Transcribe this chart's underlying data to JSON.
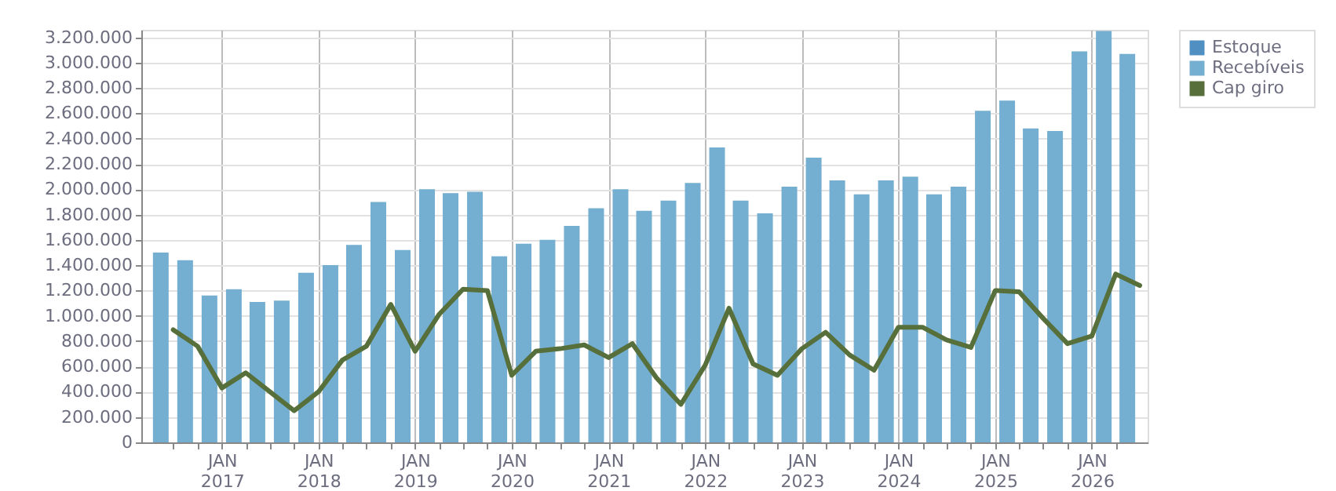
{
  "chart_data": {
    "type": "bar",
    "series": [
      {
        "name": "Estoque",
        "color": "#4f8fc2",
        "values": [
          null,
          null,
          null,
          null,
          null,
          null,
          null,
          null,
          null,
          null,
          null,
          null,
          null,
          null,
          null,
          null,
          null,
          null,
          null,
          null,
          null,
          null,
          null,
          null,
          null,
          null,
          null,
          null,
          null,
          null,
          null,
          null,
          null,
          null,
          null,
          null,
          null,
          null,
          null,
          null,
          null
        ]
      },
      {
        "name": "Recebíveis",
        "color": "#74aed1",
        "x": [
          "2016-05-15",
          "2016-08-15",
          "2016-11-15",
          "2017-02-15",
          "2017-05-15",
          "2017-08-15",
          "2017-11-15",
          "2018-02-15",
          "2018-05-15",
          "2018-08-15",
          "2018-11-15",
          "2019-02-15",
          "2019-05-15",
          "2019-08-15",
          "2019-11-15",
          "2020-02-15",
          "2020-05-15",
          "2020-08-15",
          "2020-11-15",
          "2021-02-15",
          "2021-05-15",
          "2021-08-15",
          "2021-11-15",
          "2022-02-15",
          "2022-05-15",
          "2022-08-15",
          "2022-11-15",
          "2023-02-15",
          "2023-05-15",
          "2023-08-15",
          "2023-11-15",
          "2024-02-15",
          "2024-05-15",
          "2024-08-15",
          "2024-11-15",
          "2025-02-15",
          "2025-05-15",
          "2025-08-15",
          "2025-11-15",
          "2026-02-15",
          "2026-05-15"
        ],
        "values": [
          1500000,
          1440000,
          1160000,
          1210000,
          1110000,
          1120000,
          1340000,
          1400000,
          1560000,
          1900000,
          1520000,
          2000000,
          1970000,
          1980000,
          1470000,
          1570000,
          1600000,
          1710000,
          1850000,
          2000000,
          1830000,
          1910000,
          2050000,
          2330000,
          1910000,
          1810000,
          2020000,
          2250000,
          2070000,
          1960000,
          2070000,
          2100000,
          1960000,
          2020000,
          2620000,
          2700000,
          2480000,
          2460000,
          3090000,
          3250000,
          3070000
        ]
      },
      {
        "name": "Cap giro",
        "type": "line",
        "color": "#566f3b",
        "x": [
          "2016-07-01",
          "2016-10-01",
          "2017-01-01",
          "2017-04-01",
          "2017-07-01",
          "2017-10-01",
          "2018-01-01",
          "2018-04-01",
          "2018-07-01",
          "2018-10-01",
          "2019-01-01",
          "2019-04-01",
          "2019-07-01",
          "2019-10-01",
          "2020-01-01",
          "2020-04-01",
          "2020-07-01",
          "2020-10-01",
          "2021-01-01",
          "2021-04-01",
          "2021-07-01",
          "2021-10-01",
          "2022-01-01",
          "2022-04-01",
          "2022-07-01",
          "2022-10-01",
          "2023-01-01",
          "2023-04-01",
          "2023-07-01",
          "2023-10-01",
          "2024-01-01",
          "2024-04-01",
          "2024-07-01",
          "2024-10-01",
          "2025-01-01",
          "2025-04-01",
          "2025-07-01",
          "2025-10-01",
          "2026-01-01",
          "2026-04-01",
          "2026-07-01"
        ],
        "values": [
          890000,
          760000,
          430000,
          550000,
          400000,
          250000,
          400000,
          650000,
          760000,
          1090000,
          720000,
          1010000,
          1210000,
          1200000,
          530000,
          720000,
          740000,
          770000,
          670000,
          780000,
          510000,
          300000,
          610000,
          1060000,
          620000,
          530000,
          740000,
          870000,
          690000,
          570000,
          910000,
          910000,
          810000,
          750000,
          1200000,
          1190000,
          980000,
          780000,
          840000,
          1330000,
          1240000
        ]
      }
    ],
    "xlim": [
      "2016-04-01",
      "2026-07-01"
    ],
    "xticks": [
      {
        "value": "2016-07-01",
        "label": null
      },
      {
        "value": "2016-10-01",
        "label": null
      },
      {
        "value": "2017-01-01",
        "label": "JAN\n2017"
      },
      {
        "value": "2017-04-01",
        "label": null
      },
      {
        "value": "2017-07-01",
        "label": null
      },
      {
        "value": "2017-10-01",
        "label": null
      },
      {
        "value": "2018-01-01",
        "label": "JAN\n2018"
      },
      {
        "value": "2018-04-01",
        "label": null
      },
      {
        "value": "2018-07-01",
        "label": null
      },
      {
        "value": "2018-10-01",
        "label": null
      },
      {
        "value": "2019-01-01",
        "label": "JAN\n2019"
      },
      {
        "value": "2019-04-01",
        "label": null
      },
      {
        "value": "2019-07-01",
        "label": null
      },
      {
        "value": "2019-10-01",
        "label": null
      },
      {
        "value": "2020-01-01",
        "label": "JAN\n2020"
      },
      {
        "value": "2020-04-01",
        "label": null
      },
      {
        "value": "2020-07-01",
        "label": null
      },
      {
        "value": "2020-10-01",
        "label": null
      },
      {
        "value": "2021-01-01",
        "label": "JAN\n2021"
      },
      {
        "value": "2021-04-01",
        "label": null
      },
      {
        "value": "2021-07-01",
        "label": null
      },
      {
        "value": "2021-10-01",
        "label": null
      },
      {
        "value": "2022-01-01",
        "label": "JAN\n2022"
      },
      {
        "value": "2022-04-01",
        "label": null
      },
      {
        "value": "2022-07-01",
        "label": null
      },
      {
        "value": "2022-10-01",
        "label": null
      },
      {
        "value": "2023-01-01",
        "label": "JAN\n2023"
      },
      {
        "value": "2023-04-01",
        "label": null
      },
      {
        "value": "2023-07-01",
        "label": null
      },
      {
        "value": "2023-10-01",
        "label": null
      },
      {
        "value": "2024-01-01",
        "label": "JAN\n2024"
      },
      {
        "value": "2024-04-01",
        "label": null
      },
      {
        "value": "2024-07-01",
        "label": null
      },
      {
        "value": "2024-10-01",
        "label": null
      },
      {
        "value": "2025-01-01",
        "label": "JAN\n2025"
      },
      {
        "value": "2025-04-01",
        "label": null
      },
      {
        "value": "2025-07-01",
        "label": null
      },
      {
        "value": "2025-10-01",
        "label": null
      },
      {
        "value": "2026-01-01",
        "label": "JAN\n2026"
      },
      {
        "value": "2026-04-01",
        "label": null
      }
    ],
    "ylim": [
      0,
      3260000
    ],
    "yticks": [
      {
        "value": 0,
        "label": "0"
      },
      {
        "value": 200000,
        "label": "200.000"
      },
      {
        "value": 400000,
        "label": "400.000"
      },
      {
        "value": 600000,
        "label": "600.000"
      },
      {
        "value": 800000,
        "label": "800.000"
      },
      {
        "value": 1000000,
        "label": "1.000.000"
      },
      {
        "value": 1200000,
        "label": "1.200.000"
      },
      {
        "value": 1400000,
        "label": "1.400.000"
      },
      {
        "value": 1600000,
        "label": "1.600.000"
      },
      {
        "value": 1800000,
        "label": "1.800.000"
      },
      {
        "value": 2000000,
        "label": "2.000.000"
      },
      {
        "value": 2200000,
        "label": "2.200.000"
      },
      {
        "value": 2400000,
        "label": "2.400.000"
      },
      {
        "value": 2600000,
        "label": "2.600.000"
      },
      {
        "value": 2800000,
        "label": "2.800.000"
      },
      {
        "value": 3000000,
        "label": "3.000.000"
      },
      {
        "value": 3200000,
        "label": "3.200.000"
      }
    ],
    "grid": true,
    "legend": "top right",
    "line_style": "solid",
    "marker": "none"
  }
}
